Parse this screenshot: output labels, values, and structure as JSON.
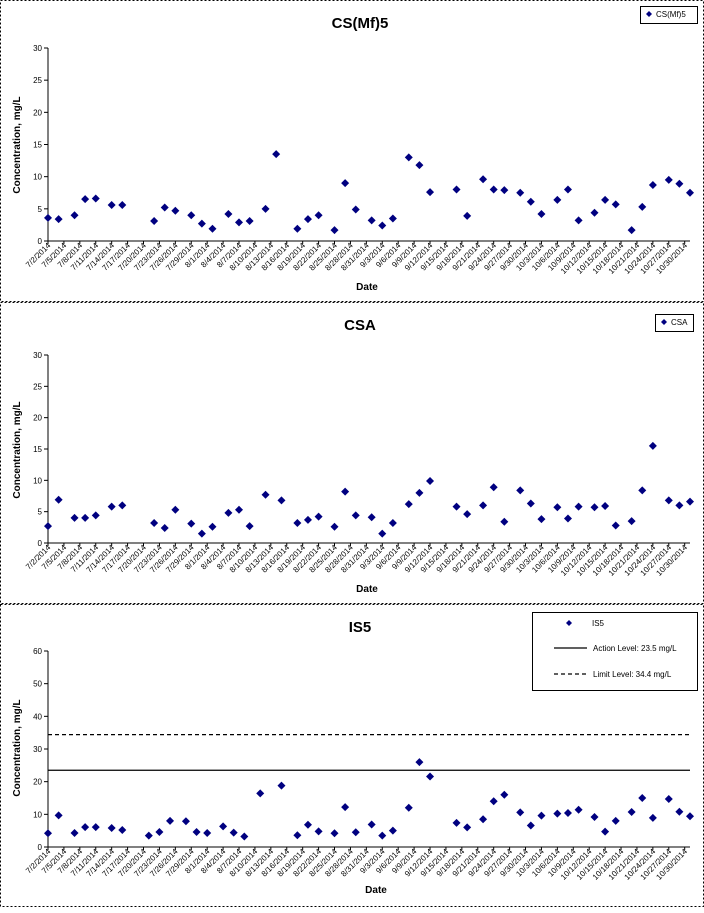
{
  "chart_data": [
    {
      "type": "scatter",
      "title": "CS(Mf)5",
      "xlabel": "Date",
      "ylabel": "Concentration, mg/L",
      "ylim": [
        0,
        30
      ],
      "y_ticks": [
        0,
        5,
        10,
        15,
        20,
        25,
        30
      ],
      "x_tick_labels": [
        "7/2/2014",
        "7/5/2014",
        "7/8/2014",
        "7/11/2014",
        "7/14/2014",
        "7/17/2014",
        "7/20/2014",
        "7/23/2014",
        "7/26/2014",
        "7/29/2014",
        "8/1/2014",
        "8/4/2014",
        "8/7/2014",
        "8/10/2014",
        "8/13/2014",
        "8/16/2014",
        "8/19/2014",
        "8/22/2014",
        "8/25/2014",
        "8/28/2014",
        "8/31/2014",
        "9/3/2014",
        "9/6/2014",
        "9/9/2014",
        "9/12/2014",
        "9/15/2014",
        "9/18/2014",
        "9/21/2014",
        "9/24/2014",
        "9/27/2014",
        "9/30/2014",
        "10/3/2014",
        "10/6/2014",
        "10/9/2014",
        "10/12/2014",
        "10/15/2014",
        "10/18/2014",
        "10/21/2014",
        "10/24/2014",
        "10/27/2014",
        "10/30/2014"
      ],
      "legend": {
        "position": "top-right",
        "entries": [
          "CS(Mf)5"
        ]
      },
      "grid": false,
      "marker_color": "#000080",
      "series": [
        {
          "name": "CS(Mf)5",
          "x": [
            "7/2/2014",
            "7/4/2014",
            "7/7/2014",
            "7/9/2014",
            "7/11/2014",
            "7/14/2014",
            "7/16/2014",
            "7/22/2014",
            "7/24/2014",
            "7/26/2014",
            "7/29/2014",
            "7/31/2014",
            "8/2/2014",
            "8/5/2014",
            "8/7/2014",
            "8/9/2014",
            "8/12/2014",
            "8/14/2014",
            "8/18/2014",
            "8/20/2014",
            "8/22/2014",
            "8/25/2014",
            "8/27/2014",
            "8/29/2014",
            "9/1/2014",
            "9/3/2014",
            "9/5/2014",
            "9/8/2014",
            "9/10/2014",
            "9/12/2014",
            "9/17/2014",
            "9/19/2014",
            "9/22/2014",
            "9/24/2014",
            "9/26/2014",
            "9/29/2014",
            "10/1/2014",
            "10/3/2014",
            "10/6/2014",
            "10/8/2014",
            "10/10/2014",
            "10/13/2014",
            "10/15/2014",
            "10/17/2014",
            "10/20/2014",
            "10/22/2014",
            "10/24/2014",
            "10/27/2014",
            "10/29/2014",
            "10/31/2014"
          ],
          "y": [
            3.6,
            3.4,
            4.0,
            6.5,
            6.6,
            5.6,
            5.6,
            3.1,
            5.2,
            4.7,
            4.0,
            2.7,
            1.9,
            4.2,
            2.9,
            3.1,
            5.0,
            13.5,
            1.9,
            3.4,
            4.0,
            1.7,
            9.0,
            4.9,
            3.2,
            2.4,
            3.5,
            13.0,
            11.8,
            7.6,
            8.0,
            3.9,
            9.6,
            8.0,
            7.9,
            7.5,
            6.1,
            4.2,
            6.4,
            8.0,
            3.2,
            4.4,
            6.4,
            5.7,
            1.7,
            5.3,
            8.7,
            9.5,
            8.9,
            7.5
          ]
        }
      ]
    },
    {
      "type": "scatter",
      "title": "CSA",
      "xlabel": "Date",
      "ylabel": "Concentration, mg/L",
      "ylim": [
        0,
        30
      ],
      "y_ticks": [
        0,
        5,
        10,
        15,
        20,
        25,
        30
      ],
      "x_tick_labels": [
        "7/2/2014",
        "7/5/2014",
        "7/8/2014",
        "7/11/2014",
        "7/14/2014",
        "7/17/2014",
        "7/20/2014",
        "7/23/2014",
        "7/26/2014",
        "7/29/2014",
        "8/1/2014",
        "8/4/2014",
        "8/7/2014",
        "8/10/2014",
        "8/13/2014",
        "8/16/2014",
        "8/19/2014",
        "8/22/2014",
        "8/25/2014",
        "8/28/2014",
        "8/31/2014",
        "9/3/2014",
        "9/6/2014",
        "9/9/2014",
        "9/12/2014",
        "9/15/2014",
        "9/18/2014",
        "9/21/2014",
        "9/24/2014",
        "9/27/2014",
        "9/30/2014",
        "10/3/2014",
        "10/6/2014",
        "10/9/2014",
        "10/12/2014",
        "10/15/2014",
        "10/18/2014",
        "10/21/2014",
        "10/24/2014",
        "10/27/2014",
        "10/30/2014"
      ],
      "legend": {
        "position": "top-right",
        "entries": [
          "CSA"
        ]
      },
      "grid": false,
      "marker_color": "#000080",
      "series": [
        {
          "name": "CSA",
          "x": [
            "7/2/2014",
            "7/4/2014",
            "7/7/2014",
            "7/9/2014",
            "7/11/2014",
            "7/14/2014",
            "7/16/2014",
            "7/22/2014",
            "7/24/2014",
            "7/26/2014",
            "7/29/2014",
            "7/31/2014",
            "8/2/2014",
            "8/5/2014",
            "8/7/2014",
            "8/9/2014",
            "8/12/2014",
            "8/15/2014",
            "8/18/2014",
            "8/20/2014",
            "8/22/2014",
            "8/25/2014",
            "8/27/2014",
            "8/29/2014",
            "9/1/2014",
            "9/3/2014",
            "9/5/2014",
            "9/8/2014",
            "9/10/2014",
            "9/12/2014",
            "9/17/2014",
            "9/19/2014",
            "9/22/2014",
            "9/24/2014",
            "9/26/2014",
            "9/29/2014",
            "10/1/2014",
            "10/3/2014",
            "10/6/2014",
            "10/8/2014",
            "10/10/2014",
            "10/13/2014",
            "10/15/2014",
            "10/17/2014",
            "10/20/2014",
            "10/22/2014",
            "10/24/2014",
            "10/27/2014",
            "10/29/2014",
            "10/31/2014"
          ],
          "y": [
            2.7,
            6.9,
            4.0,
            4.0,
            4.4,
            5.8,
            6.0,
            3.2,
            2.4,
            5.3,
            3.1,
            1.5,
            2.6,
            4.8,
            5.3,
            2.7,
            7.7,
            6.8,
            3.2,
            3.7,
            4.2,
            2.6,
            8.2,
            4.4,
            4.1,
            1.5,
            3.2,
            6.2,
            8.0,
            9.9,
            5.8,
            4.6,
            6.0,
            8.9,
            3.4,
            8.4,
            6.3,
            3.8,
            5.7,
            3.9,
            5.8,
            5.7,
            5.9,
            2.8,
            3.5,
            8.4,
            15.5,
            6.8,
            6.0,
            6.6
          ]
        }
      ]
    },
    {
      "type": "scatter",
      "title": "IS5",
      "xlabel": "Date",
      "ylabel": "Concentration, mg/L",
      "ylim": [
        0,
        60
      ],
      "y_ticks": [
        0,
        10,
        20,
        30,
        40,
        50,
        60
      ],
      "x_tick_labels": [
        "7/2/2014",
        "7/5/2014",
        "7/8/2014",
        "7/11/2014",
        "7/14/2014",
        "7/17/2014",
        "7/20/2014",
        "7/23/2014",
        "7/26/2014",
        "7/29/2014",
        "8/1/2014",
        "8/4/2014",
        "8/7/2014",
        "8/10/2014",
        "8/13/2014",
        "8/16/2014",
        "8/19/2014",
        "8/22/2014",
        "8/25/2014",
        "8/28/2014",
        "8/31/2014",
        "9/3/2014",
        "9/6/2014",
        "9/9/2014",
        "9/12/2014",
        "9/15/2014",
        "9/18/2014",
        "9/21/2014",
        "9/24/2014",
        "9/27/2014",
        "9/30/2014",
        "10/3/2014",
        "10/6/2014",
        "10/9/2014",
        "10/12/2014",
        "10/15/2014",
        "10/18/2014",
        "10/21/2014",
        "10/24/2014",
        "10/27/2014",
        "10/30/2014"
      ],
      "legend": {
        "position": "top-right",
        "entries": [
          "IS5",
          "Action Level: 23.5 mg/L",
          "Limit Level: 34.4 mg/L"
        ]
      },
      "grid": false,
      "marker_color": "#000080",
      "reference_lines": [
        {
          "label": "Action Level: 23.5 mg/L",
          "value": 23.5,
          "style": "solid"
        },
        {
          "label": "Limit Level: 34.4 mg/L",
          "value": 34.4,
          "style": "dashed"
        }
      ],
      "series": [
        {
          "name": "IS5",
          "x": [
            "7/2/2014",
            "7/4/2014",
            "7/7/2014",
            "7/9/2014",
            "7/11/2014",
            "7/14/2014",
            "7/16/2014",
            "7/21/2014",
            "7/23/2014",
            "7/25/2014",
            "7/28/2014",
            "7/30/2014",
            "8/1/2014",
            "8/4/2014",
            "8/6/2014",
            "8/8/2014",
            "8/11/2014",
            "8/15/2014",
            "8/18/2014",
            "8/20/2014",
            "8/22/2014",
            "8/25/2014",
            "8/27/2014",
            "8/29/2014",
            "9/1/2014",
            "9/3/2014",
            "9/5/2014",
            "9/8/2014",
            "9/10/2014",
            "9/12/2014",
            "9/17/2014",
            "9/19/2014",
            "9/22/2014",
            "9/24/2014",
            "9/26/2014",
            "9/29/2014",
            "10/1/2014",
            "10/3/2014",
            "10/6/2014",
            "10/8/2014",
            "10/10/2014",
            "10/13/2014",
            "10/15/2014",
            "10/17/2014",
            "10/20/2014",
            "10/22/2014",
            "10/24/2014",
            "10/27/2014",
            "10/29/2014",
            "10/31/2014"
          ],
          "y": [
            4.2,
            9.7,
            4.3,
            6.1,
            6.1,
            5.8,
            5.2,
            3.5,
            4.6,
            8.0,
            7.9,
            4.6,
            4.3,
            6.3,
            4.4,
            3.2,
            16.4,
            18.8,
            3.6,
            6.8,
            4.8,
            4.2,
            12.2,
            4.5,
            6.9,
            3.5,
            5.0,
            12.0,
            26.0,
            21.6,
            7.4,
            6.0,
            8.5,
            14.0,
            16.0,
            10.6,
            6.6,
            9.6,
            10.2,
            10.4,
            11.4,
            9.2,
            4.7,
            8.0,
            10.7,
            15.0,
            8.9,
            14.7,
            10.8,
            9.4
          ]
        }
      ]
    }
  ]
}
